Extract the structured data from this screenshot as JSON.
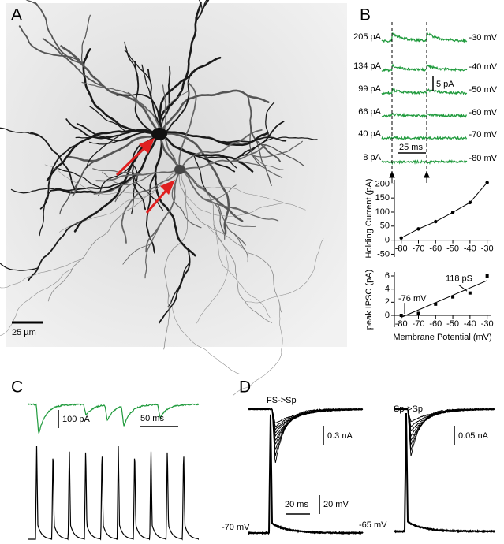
{
  "panel_labels": [
    "A",
    "B",
    "C",
    "D"
  ],
  "panel_a": {
    "scale_bar": "25 µm"
  },
  "panel_b": {
    "holding_currents": [
      "205 pA",
      "134 pA",
      "99 pA",
      "66 pA",
      "40 pA",
      "8 pA"
    ],
    "potentials": [
      "-30 mV",
      "-40 mV",
      "-50 mV",
      "-60 mV",
      "-70 mV",
      "-80 mV"
    ],
    "scale_current": "5 pA",
    "scale_time": "25 ms"
  },
  "panel_c": {
    "scale_current": "100 pA",
    "scale_time": "50 ms"
  },
  "panel_d": {
    "left": {
      "title": "FS->Sp",
      "scale_current": "0.3 nA",
      "scale_time": "20 ms",
      "scale_voltage": "20 mV",
      "holding": "-70 mV"
    },
    "right": {
      "title": "Sp->Sp",
      "scale_current": "0.05 nA",
      "holding": "-65 mV"
    }
  },
  "chart_data": [
    {
      "type": "line",
      "ylabel": "Holding Current (pA)",
      "x": [
        -80,
        -70,
        -60,
        -50,
        -40,
        -30
      ],
      "values": [
        8,
        40,
        66,
        99,
        134,
        205
      ],
      "color": "#000000",
      "xlim": [
        -84,
        -28
      ],
      "ylim": [
        -60,
        215
      ],
      "xticks": [
        -80,
        -70,
        -60,
        -50,
        -40,
        -30
      ],
      "yticks": [
        -50,
        0,
        50,
        100,
        150,
        200
      ]
    },
    {
      "type": "scatter",
      "ylabel": "peak IPSC (pA)",
      "xlabel": "Membrane Potential (mV)",
      "x": [
        -80,
        -70,
        -60,
        -50,
        -40,
        -30
      ],
      "values": [
        0,
        0.3,
        1.7,
        2.8,
        3.4,
        6
      ],
      "color": "#000000",
      "fit": {
        "x": [
          -80,
          -30
        ],
        "values": [
          -0.3,
          5.3
        ]
      },
      "annotations": [
        "118 pS",
        "-76 mV"
      ],
      "xlim": [
        -84,
        -28
      ],
      "ylim": [
        -1.8,
        6.6
      ],
      "xticks": [
        -80,
        -70,
        -60,
        -50,
        -40,
        -30
      ],
      "yticks": [
        0,
        2,
        4,
        6
      ]
    }
  ]
}
